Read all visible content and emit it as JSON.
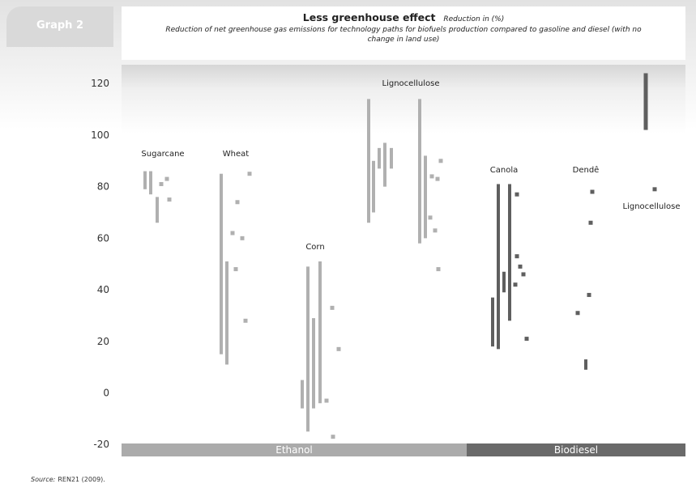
{
  "header": {
    "tab_label": "Graph 2",
    "title": "Less greenhouse effect",
    "unit": "Reduction in (%)",
    "subtitle": "Reduction of net greenhouse gas emissions for technology paths for biofuels production compared to gasoline and diesel (with no change in land use)"
  },
  "source": {
    "lead": "Source:",
    "text": "REN21 (2009)."
  },
  "colors": {
    "ethanol": "#b0b0b0",
    "biodiesel": "#5f5f5f",
    "band_ethanol": "#ababab",
    "band_biodiesel": "#6a6a6a"
  },
  "chart_data": {
    "type": "range-bar",
    "title": "Less greenhouse effect",
    "ylabel": "Reduction in (%)",
    "ylim": [
      -20,
      128
    ],
    "yticks": [
      120,
      100,
      80,
      60,
      40,
      20,
      0,
      -20
    ],
    "groups": [
      {
        "label": "Ethanol",
        "crops": [
          "Sugarcane",
          "Wheat",
          "Corn",
          "Lignocellulose"
        ]
      },
      {
        "label": "Biodiesel",
        "crops": [
          "Canola",
          "Dendê",
          "Lignocellulose"
        ]
      }
    ],
    "crops": [
      {
        "name": "Sugarcane",
        "fuel": "ethanol",
        "ranges": [
          [
            79,
            86
          ],
          [
            77,
            86
          ],
          [
            66,
            76
          ]
        ],
        "points": [
          81,
          83,
          75
        ]
      },
      {
        "name": "Wheat",
        "fuel": "ethanol",
        "ranges": [
          [
            15,
            85
          ],
          [
            11,
            51
          ]
        ],
        "points": [
          85,
          74,
          62,
          60,
          48,
          28
        ]
      },
      {
        "name": "Corn",
        "fuel": "ethanol",
        "ranges": [
          [
            -6,
            5
          ],
          [
            -15,
            49
          ],
          [
            -6,
            29
          ],
          [
            -4,
            51
          ]
        ],
        "points": [
          -3,
          33,
          17,
          -17
        ]
      },
      {
        "name": "Lignocellulose",
        "fuel": "ethanol",
        "ranges": [
          [
            66,
            114
          ],
          [
            70,
            90
          ],
          [
            87,
            95
          ],
          [
            80,
            97
          ],
          [
            87,
            95
          ],
          [
            58,
            114
          ],
          [
            60,
            92
          ]
        ],
        "points": [
          84,
          83,
          90,
          68,
          63,
          48
        ]
      },
      {
        "name": "Canola",
        "fuel": "biodiesel",
        "ranges": [
          [
            18,
            37
          ],
          [
            17,
            81
          ],
          [
            39,
            47
          ],
          [
            28,
            81
          ]
        ],
        "points": [
          77,
          53,
          49,
          46,
          42,
          21
        ]
      },
      {
        "name": "Dendê",
        "fuel": "biodiesel",
        "ranges": [
          [
            9,
            13
          ]
        ],
        "points": [
          78,
          66,
          38,
          31
        ]
      },
      {
        "name": "Lignocellulose",
        "fuel": "biodiesel",
        "ranges": [
          [
            102,
            124
          ]
        ],
        "points": [
          79
        ]
      }
    ]
  }
}
